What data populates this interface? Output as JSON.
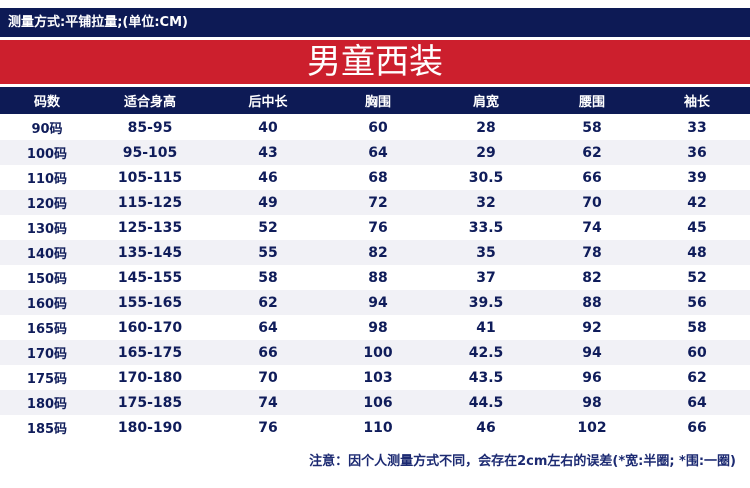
{
  "header": {
    "text": "测量方式:平铺拉量;(单位:CM)"
  },
  "title": "男童西装",
  "columns": [
    "码数",
    "适合身高",
    "后中长",
    "胸围",
    "肩宽",
    "腰围",
    "袖长"
  ],
  "rows": [
    [
      "90码",
      "85-95",
      "40",
      "60",
      "28",
      "58",
      "33"
    ],
    [
      "100码",
      "95-105",
      "43",
      "64",
      "29",
      "62",
      "36"
    ],
    [
      "110码",
      "105-115",
      "46",
      "68",
      "30.5",
      "66",
      "39"
    ],
    [
      "120码",
      "115-125",
      "49",
      "72",
      "32",
      "70",
      "42"
    ],
    [
      "130码",
      "125-135",
      "52",
      "76",
      "33.5",
      "74",
      "45"
    ],
    [
      "140码",
      "135-145",
      "55",
      "82",
      "35",
      "78",
      "48"
    ],
    [
      "150码",
      "145-155",
      "58",
      "88",
      "37",
      "82",
      "52"
    ],
    [
      "160码",
      "155-165",
      "62",
      "94",
      "39.5",
      "88",
      "56"
    ],
    [
      "165码",
      "160-170",
      "64",
      "98",
      "41",
      "92",
      "58"
    ],
    [
      "170码",
      "165-175",
      "66",
      "100",
      "42.5",
      "94",
      "60"
    ],
    [
      "175码",
      "170-180",
      "70",
      "103",
      "43.5",
      "96",
      "62"
    ],
    [
      "180码",
      "175-185",
      "74",
      "106",
      "44.5",
      "98",
      "64"
    ],
    [
      "185码",
      "180-190",
      "76",
      "110",
      "46",
      "102",
      "66"
    ]
  ],
  "note": "注意：因个人测量方式不同，会存在2cm左右的误差(*宽:半圈; *围:一圈)",
  "colors": {
    "navy": "#0d1a55",
    "red": "#cc1f2d",
    "row_alt": "#f1f1f6",
    "text": "#0f1c5a"
  }
}
